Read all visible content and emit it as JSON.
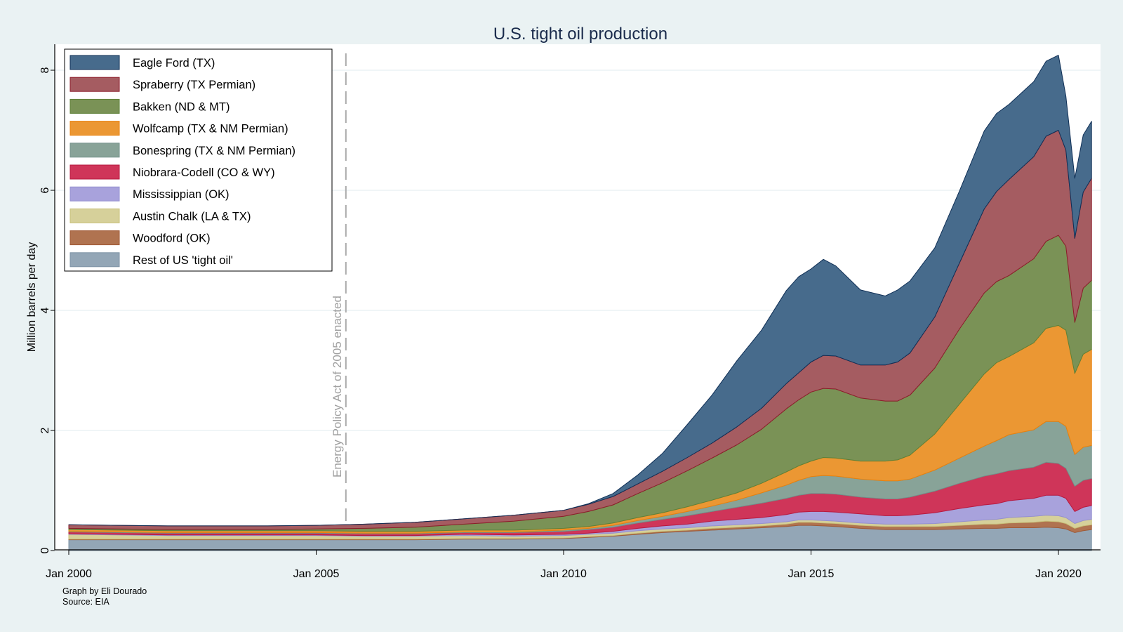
{
  "chart_data": {
    "type": "area",
    "stacked": true,
    "title": "U.S. tight oil production",
    "xlabel": "",
    "ylabel": "Million barrels per day",
    "xlim": [
      2000.0,
      2020.75
    ],
    "ylim": [
      0,
      8.4
    ],
    "x_ticks": [
      2000,
      2005,
      2010,
      2015,
      2020
    ],
    "x_tick_labels": [
      "Jan 2000",
      "Jan 2005",
      "Jan 2010",
      "Jan 2015",
      "Jan 2020"
    ],
    "y_ticks": [
      0,
      2,
      4,
      6,
      8
    ],
    "y_tick_labels": [
      "0",
      "2",
      "4",
      "6",
      "8"
    ],
    "grid": "horizontal",
    "legend_position": "top-left",
    "annotations": [
      {
        "text": "Energy Policy Act of 2005 enacted",
        "x": 2005.6,
        "style": "dashed vertical line"
      }
    ],
    "notes": [
      "Graph by Eli Dourado",
      "Source: EIA"
    ],
    "x": [
      2000.0,
      2001.0,
      2002.0,
      2003.0,
      2004.0,
      2005.0,
      2006.0,
      2007.0,
      2008.0,
      2009.0,
      2010.0,
      2010.5,
      2011.0,
      2011.5,
      2012.0,
      2012.5,
      2013.0,
      2013.5,
      2014.0,
      2014.5,
      2014.75,
      2015.0,
      2015.25,
      2015.5,
      2016.0,
      2016.5,
      2016.75,
      2017.0,
      2017.5,
      2018.0,
      2018.5,
      2018.75,
      2019.0,
      2019.5,
      2019.75,
      2020.0,
      2020.15,
      2020.33,
      2020.5,
      2020.67
    ],
    "series": [
      {
        "name": "Rest of US 'tight oil'",
        "color": "#93a6b6",
        "edge": "#7d93a6",
        "values": [
          0.18,
          0.18,
          0.18,
          0.18,
          0.18,
          0.18,
          0.18,
          0.18,
          0.19,
          0.19,
          0.2,
          0.22,
          0.24,
          0.27,
          0.3,
          0.32,
          0.34,
          0.36,
          0.38,
          0.4,
          0.42,
          0.42,
          0.41,
          0.4,
          0.37,
          0.35,
          0.35,
          0.35,
          0.35,
          0.36,
          0.37,
          0.37,
          0.38,
          0.38,
          0.39,
          0.38,
          0.36,
          0.3,
          0.33,
          0.35
        ]
      },
      {
        "name": "Woodford (OK)",
        "color": "#b07350",
        "edge": "#a05a36",
        "values": [
          0.01,
          0.01,
          0.01,
          0.01,
          0.01,
          0.01,
          0.01,
          0.01,
          0.01,
          0.01,
          0.01,
          0.01,
          0.01,
          0.02,
          0.02,
          0.02,
          0.03,
          0.03,
          0.03,
          0.04,
          0.05,
          0.05,
          0.05,
          0.05,
          0.05,
          0.05,
          0.05,
          0.05,
          0.05,
          0.06,
          0.07,
          0.07,
          0.08,
          0.09,
          0.1,
          0.1,
          0.09,
          0.07,
          0.08,
          0.08
        ]
      },
      {
        "name": "Austin Chalk (LA & TX)",
        "color": "#d6d09a",
        "edge": "#c8c07a",
        "values": [
          0.08,
          0.07,
          0.06,
          0.06,
          0.06,
          0.06,
          0.05,
          0.05,
          0.05,
          0.04,
          0.04,
          0.04,
          0.04,
          0.04,
          0.04,
          0.04,
          0.04,
          0.04,
          0.04,
          0.04,
          0.04,
          0.04,
          0.04,
          0.04,
          0.04,
          0.04,
          0.04,
          0.04,
          0.05,
          0.06,
          0.07,
          0.08,
          0.09,
          0.1,
          0.1,
          0.1,
          0.1,
          0.08,
          0.09,
          0.09
        ]
      },
      {
        "name": "Mississippian (OK)",
        "color": "#a8a2dc",
        "edge": "#9590d0",
        "values": [
          0.01,
          0.01,
          0.01,
          0.01,
          0.01,
          0.01,
          0.01,
          0.01,
          0.02,
          0.02,
          0.02,
          0.02,
          0.03,
          0.04,
          0.05,
          0.06,
          0.08,
          0.09,
          0.1,
          0.12,
          0.13,
          0.14,
          0.15,
          0.15,
          0.15,
          0.14,
          0.14,
          0.15,
          0.18,
          0.22,
          0.25,
          0.26,
          0.28,
          0.3,
          0.33,
          0.34,
          0.32,
          0.2,
          0.22,
          0.23
        ]
      },
      {
        "name": "Niobrara-Codell (CO & WY)",
        "color": "#cf3559",
        "edge": "#b7193f",
        "values": [
          0.03,
          0.03,
          0.03,
          0.03,
          0.03,
          0.03,
          0.03,
          0.03,
          0.03,
          0.04,
          0.05,
          0.06,
          0.07,
          0.09,
          0.11,
          0.14,
          0.16,
          0.2,
          0.24,
          0.27,
          0.28,
          0.3,
          0.3,
          0.3,
          0.28,
          0.28,
          0.28,
          0.3,
          0.36,
          0.42,
          0.48,
          0.5,
          0.5,
          0.52,
          0.55,
          0.53,
          0.5,
          0.42,
          0.45,
          0.45
        ]
      },
      {
        "name": "Bonespring (TX & NM Permian)",
        "color": "#88a398",
        "edge": "#72908a",
        "values": [
          0.01,
          0.01,
          0.01,
          0.01,
          0.01,
          0.01,
          0.01,
          0.01,
          0.01,
          0.01,
          0.02,
          0.02,
          0.03,
          0.04,
          0.05,
          0.07,
          0.09,
          0.12,
          0.17,
          0.22,
          0.25,
          0.28,
          0.3,
          0.3,
          0.3,
          0.3,
          0.3,
          0.3,
          0.35,
          0.42,
          0.5,
          0.55,
          0.6,
          0.62,
          0.68,
          0.7,
          0.7,
          0.53,
          0.55,
          0.55
        ]
      },
      {
        "name": "Wolfcamp (TX & NM Permian)",
        "color": "#eb9733",
        "edge": "#e8800c",
        "values": [
          0.03,
          0.03,
          0.03,
          0.03,
          0.03,
          0.03,
          0.03,
          0.03,
          0.03,
          0.03,
          0.03,
          0.03,
          0.04,
          0.05,
          0.06,
          0.08,
          0.1,
          0.12,
          0.16,
          0.22,
          0.24,
          0.26,
          0.3,
          0.3,
          0.3,
          0.33,
          0.35,
          0.4,
          0.6,
          0.9,
          1.2,
          1.3,
          1.3,
          1.45,
          1.55,
          1.6,
          1.6,
          1.35,
          1.55,
          1.6
        ]
      },
      {
        "name": "Bakken (ND & MT)",
        "color": "#7a9256",
        "edge": "#5e8038",
        "values": [
          0.02,
          0.02,
          0.02,
          0.02,
          0.02,
          0.03,
          0.05,
          0.07,
          0.1,
          0.15,
          0.2,
          0.25,
          0.3,
          0.4,
          0.5,
          0.6,
          0.7,
          0.8,
          0.9,
          1.05,
          1.1,
          1.15,
          1.15,
          1.15,
          1.05,
          1.0,
          0.98,
          1.0,
          1.1,
          1.25,
          1.35,
          1.35,
          1.35,
          1.4,
          1.45,
          1.5,
          1.4,
          0.85,
          1.1,
          1.15
        ]
      },
      {
        "name": "Spraberry (TX Permian)",
        "color": "#a55c61",
        "edge": "#8c1c2a",
        "values": [
          0.06,
          0.06,
          0.06,
          0.06,
          0.06,
          0.06,
          0.07,
          0.08,
          0.09,
          0.1,
          0.1,
          0.12,
          0.14,
          0.16,
          0.19,
          0.22,
          0.25,
          0.3,
          0.35,
          0.42,
          0.45,
          0.5,
          0.55,
          0.55,
          0.55,
          0.6,
          0.65,
          0.7,
          0.85,
          1.1,
          1.4,
          1.5,
          1.6,
          1.7,
          1.75,
          1.75,
          1.6,
          1.4,
          1.6,
          1.7
        ]
      },
      {
        "name": "Eagle Ford (TX)",
        "color": "#476b8c",
        "edge": "#0f2f56",
        "values": [
          0.0,
          0.0,
          0.0,
          0.0,
          0.0,
          0.0,
          0.0,
          0.0,
          0.0,
          0.0,
          0.0,
          0.01,
          0.05,
          0.15,
          0.3,
          0.55,
          0.8,
          1.1,
          1.3,
          1.55,
          1.6,
          1.55,
          1.6,
          1.5,
          1.25,
          1.15,
          1.2,
          1.2,
          1.15,
          1.2,
          1.3,
          1.3,
          1.25,
          1.25,
          1.25,
          1.25,
          0.9,
          1.0,
          0.95,
          0.95
        ]
      }
    ]
  },
  "legend": {
    "items": [
      {
        "label": "Eagle Ford (TX)",
        "color": "#476b8c",
        "edge": "#0f2f56"
      },
      {
        "label": "Spraberry (TX Permian)",
        "color": "#a55c61",
        "edge": "#8c1c2a"
      },
      {
        "label": "Bakken (ND & MT)",
        "color": "#7a9256",
        "edge": "#5e8038"
      },
      {
        "label": "Wolfcamp (TX & NM Permian)",
        "color": "#eb9733",
        "edge": "#e8800c"
      },
      {
        "label": "Bonespring (TX & NM Permian)",
        "color": "#88a398",
        "edge": "#72908a"
      },
      {
        "label": "Niobrara-Codell (CO & WY)",
        "color": "#cf3559",
        "edge": "#b7193f"
      },
      {
        "label": "Mississippian (OK)",
        "color": "#a8a2dc",
        "edge": "#9590d0"
      },
      {
        "label": "Austin Chalk (LA & TX)",
        "color": "#d6d09a",
        "edge": "#c8c07a"
      },
      {
        "label": "Woodford (OK)",
        "color": "#b07350",
        "edge": "#a05a36"
      },
      {
        "label": "Rest of US 'tight oil'",
        "color": "#93a6b6",
        "edge": "#7d93a6"
      }
    ]
  }
}
